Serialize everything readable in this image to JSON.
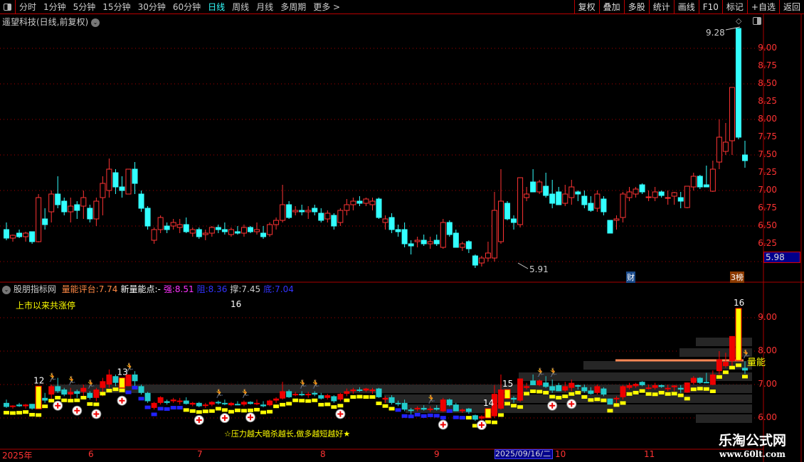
{
  "toolbar": {
    "periods": [
      "分时",
      "1分钟",
      "5分钟",
      "15分钟",
      "30分钟",
      "60分钟",
      "日线",
      "周线",
      "月线",
      "多周期",
      "更多 >"
    ],
    "active": "日线",
    "right_buttons": [
      "复权",
      "叠加",
      "多股",
      "统计",
      "画线",
      "F10",
      "标记",
      "+自选",
      "返回"
    ]
  },
  "stock": {
    "title": "遥望科技(日线,前复权)"
  },
  "main_chart": {
    "y_ticks": [
      "9.00",
      "8.75",
      "8.50",
      "8.25",
      "8.00",
      "7.75",
      "7.50",
      "7.25",
      "7.00",
      "6.75",
      "6.50",
      "6.25"
    ],
    "current_price": "5.98",
    "high_label": "9.28",
    "low_label": "5.91",
    "badges": [
      "财",
      "3榜"
    ],
    "colors": {
      "up": "#ff3333",
      "down": "#33ffff",
      "grid": "#aa0000",
      "axis": "#ff3333"
    },
    "candles": [
      [
        6.45,
        6.55,
        6.3,
        6.33
      ],
      [
        6.33,
        6.38,
        6.28,
        6.37
      ],
      [
        6.4,
        6.45,
        6.33,
        6.35
      ],
      [
        6.35,
        6.42,
        6.28,
        6.4
      ],
      [
        6.42,
        6.42,
        6.25,
        6.28
      ],
      [
        6.28,
        6.95,
        6.27,
        6.9
      ],
      [
        6.6,
        6.75,
        6.45,
        6.52
      ],
      [
        6.7,
        7.0,
        6.55,
        6.95
      ],
      [
        6.95,
        7.2,
        6.75,
        6.8
      ],
      [
        6.85,
        6.9,
        6.65,
        6.7
      ],
      [
        6.7,
        6.9,
        6.55,
        6.78
      ],
      [
        6.8,
        6.85,
        6.6,
        6.72
      ],
      [
        6.78,
        7.0,
        6.6,
        6.9
      ],
      [
        6.75,
        6.8,
        6.55,
        6.6
      ],
      [
        6.6,
        6.9,
        6.5,
        6.85
      ],
      [
        6.9,
        7.2,
        6.65,
        7.1
      ],
      [
        7.0,
        7.45,
        6.9,
        7.3
      ],
      [
        7.25,
        7.3,
        6.95,
        7.05
      ],
      [
        7.05,
        7.2,
        6.9,
        7.0
      ],
      [
        6.95,
        7.3,
        6.95,
        7.3
      ],
      [
        7.3,
        7.4,
        6.95,
        7.1
      ],
      [
        6.95,
        7.0,
        6.7,
        6.75
      ],
      [
        6.75,
        6.78,
        6.45,
        6.5
      ],
      [
        6.3,
        6.48,
        6.25,
        6.45
      ],
      [
        6.45,
        6.65,
        6.4,
        6.62
      ],
      [
        6.5,
        6.55,
        6.4,
        6.45
      ],
      [
        6.5,
        6.6,
        6.45,
        6.55
      ],
      [
        6.48,
        6.6,
        6.4,
        6.52
      ],
      [
        6.52,
        6.62,
        6.4,
        6.42
      ],
      [
        6.4,
        6.48,
        6.35,
        6.45
      ],
      [
        6.45,
        6.48,
        6.32,
        6.35
      ],
      [
        6.38,
        6.45,
        6.3,
        6.4
      ],
      [
        6.4,
        6.5,
        6.35,
        6.48
      ],
      [
        6.48,
        6.52,
        6.4,
        6.45
      ],
      [
        6.45,
        6.55,
        6.38,
        6.42
      ],
      [
        6.38,
        6.48,
        6.35,
        6.45
      ],
      [
        6.42,
        6.5,
        6.38,
        6.4
      ],
      [
        6.4,
        6.52,
        6.35,
        6.48
      ],
      [
        6.48,
        6.5,
        6.4,
        6.42
      ],
      [
        6.42,
        6.55,
        6.38,
        6.45
      ],
      [
        6.4,
        6.5,
        6.32,
        6.35
      ],
      [
        6.38,
        6.55,
        6.35,
        6.52
      ],
      [
        6.52,
        6.62,
        6.45,
        6.58
      ],
      [
        6.58,
        7.08,
        6.55,
        6.8
      ],
      [
        6.8,
        6.85,
        6.6,
        6.62
      ],
      [
        6.7,
        6.78,
        6.65,
        6.72
      ],
      [
        6.72,
        6.8,
        6.65,
        6.7
      ],
      [
        6.7,
        6.78,
        6.6,
        6.72
      ],
      [
        6.75,
        6.8,
        6.65,
        6.7
      ],
      [
        6.68,
        6.75,
        6.55,
        6.58
      ],
      [
        6.6,
        6.72,
        6.55,
        6.68
      ],
      [
        6.65,
        6.68,
        6.45,
        6.5
      ],
      [
        6.55,
        6.75,
        6.5,
        6.72
      ],
      [
        6.72,
        6.88,
        6.65,
        6.8
      ],
      [
        6.8,
        6.9,
        6.72,
        6.85
      ],
      [
        6.85,
        6.92,
        6.78,
        6.82
      ],
      [
        6.82,
        6.9,
        6.78,
        6.88
      ],
      [
        6.8,
        6.9,
        6.72,
        6.85
      ],
      [
        6.88,
        6.9,
        6.6,
        6.62
      ],
      [
        6.55,
        6.65,
        6.45,
        6.6
      ],
      [
        6.62,
        6.68,
        6.4,
        6.45
      ],
      [
        6.45,
        6.52,
        6.35,
        6.42
      ],
      [
        6.45,
        6.55,
        6.2,
        6.25
      ],
      [
        6.25,
        6.3,
        6.1,
        6.22
      ],
      [
        6.28,
        6.35,
        6.2,
        6.3
      ],
      [
        6.3,
        6.38,
        6.22,
        6.25
      ],
      [
        6.25,
        6.35,
        6.18,
        6.28
      ],
      [
        6.3,
        6.38,
        6.22,
        6.25
      ],
      [
        6.2,
        6.6,
        6.18,
        6.55
      ],
      [
        6.55,
        6.58,
        6.35,
        6.38
      ],
      [
        6.4,
        6.45,
        6.2,
        6.2
      ],
      [
        6.2,
        6.28,
        6.15,
        6.25
      ],
      [
        6.28,
        6.3,
        6.12,
        6.18
      ],
      [
        6.08,
        6.1,
        5.91,
        5.95
      ],
      [
        5.98,
        6.08,
        5.93,
        6.05
      ],
      [
        6.05,
        6.28,
        6.0,
        6.12
      ],
      [
        6.05,
        6.98,
        6.0,
        6.72
      ],
      [
        6.28,
        7.3,
        6.25,
        6.85
      ],
      [
        6.82,
        6.85,
        6.58,
        6.6
      ],
      [
        6.6,
        6.65,
        6.45,
        6.55
      ],
      [
        6.52,
        7.18,
        6.48,
        7.18
      ],
      [
        6.9,
        7.05,
        6.85,
        6.95
      ],
      [
        7.12,
        7.3,
        6.98,
        6.98
      ],
      [
        6.98,
        7.15,
        6.95,
        7.12
      ],
      [
        7.06,
        7.25,
        6.9,
        6.93
      ],
      [
        6.95,
        7.15,
        6.75,
        6.82
      ],
      [
        6.98,
        7.05,
        6.8,
        6.8
      ],
      [
        6.82,
        7.08,
        6.78,
        6.95
      ],
      [
        6.9,
        7.15,
        6.8,
        7.05
      ],
      [
        6.98,
        7.0,
        6.85,
        6.95
      ],
      [
        6.92,
        7.0,
        6.75,
        6.8
      ],
      [
        6.82,
        6.92,
        6.7,
        6.72
      ],
      [
        6.75,
        7.0,
        6.7,
        6.95
      ],
      [
        6.88,
        6.92,
        6.65,
        6.7
      ],
      [
        6.58,
        6.58,
        6.4,
        6.4
      ],
      [
        6.58,
        6.65,
        6.45,
        6.6
      ],
      [
        6.62,
        6.98,
        6.55,
        6.95
      ],
      [
        6.9,
        7.05,
        6.85,
        6.98
      ],
      [
        6.95,
        7.05,
        6.9,
        7.02
      ],
      [
        7.08,
        7.1,
        6.95,
        6.98
      ],
      [
        6.9,
        7.0,
        6.85,
        6.91
      ],
      [
        6.9,
        7.05,
        6.85,
        6.98
      ],
      [
        6.98,
        7.0,
        6.9,
        6.93
      ],
      [
        6.9,
        7.0,
        6.8,
        6.9
      ],
      [
        6.92,
        6.98,
        6.8,
        6.97
      ],
      [
        6.9,
        6.98,
        6.75,
        6.85
      ],
      [
        6.76,
        7.06,
        6.75,
        7.06
      ],
      [
        7.05,
        7.25,
        7.0,
        7.2
      ],
      [
        7.2,
        7.22,
        7.02,
        7.05
      ],
      [
        7.08,
        7.35,
        7.05,
        7.05
      ],
      [
        6.99,
        7.42,
        6.98,
        7.3
      ],
      [
        7.4,
        8.0,
        7.3,
        7.75
      ],
      [
        7.55,
        7.95,
        7.5,
        7.68
      ],
      [
        7.7,
        8.45,
        7.5,
        8.45
      ],
      [
        9.28,
        9.28,
        7.72,
        7.75
      ],
      [
        7.5,
        7.7,
        7.32,
        7.42
      ]
    ]
  },
  "indicator": {
    "name": "股朋指标网",
    "fields": [
      {
        "label": "量能评台:",
        "value": "7.74",
        "color": "#ff8844"
      },
      {
        "label": "新量能点:",
        "value": "-",
        "color": "#ffffff"
      },
      {
        "label": "强:",
        "value": "8.51",
        "color": "#ff33ff"
      },
      {
        "label": "阻:",
        "value": "8.36",
        "color": "#3333ff"
      },
      {
        "label": "撑:",
        "value": "7.45",
        "color": "#cccccc"
      },
      {
        "label": "底:",
        "value": "7.04",
        "color": "#3333ff"
      }
    ],
    "limit_up_label": "上市以来共涨停",
    "limit_up_count": "16",
    "y_ticks": [
      "9.00",
      "8.00",
      "7.00",
      "6.00"
    ],
    "limit_up_marks": [
      "12",
      "13",
      "14",
      "15",
      "16"
    ],
    "volume_label": "量能",
    "slogan": "☆压力越大暗杀越长,做多越短越好★"
  },
  "date_axis": {
    "labels": [
      "2025年",
      "6",
      "7",
      "8",
      "9",
      "10",
      "11"
    ],
    "cursor_date": "2025/09/16/二"
  },
  "watermark": {
    "name": "乐淘公式网",
    "url": "www.60lt.com"
  }
}
